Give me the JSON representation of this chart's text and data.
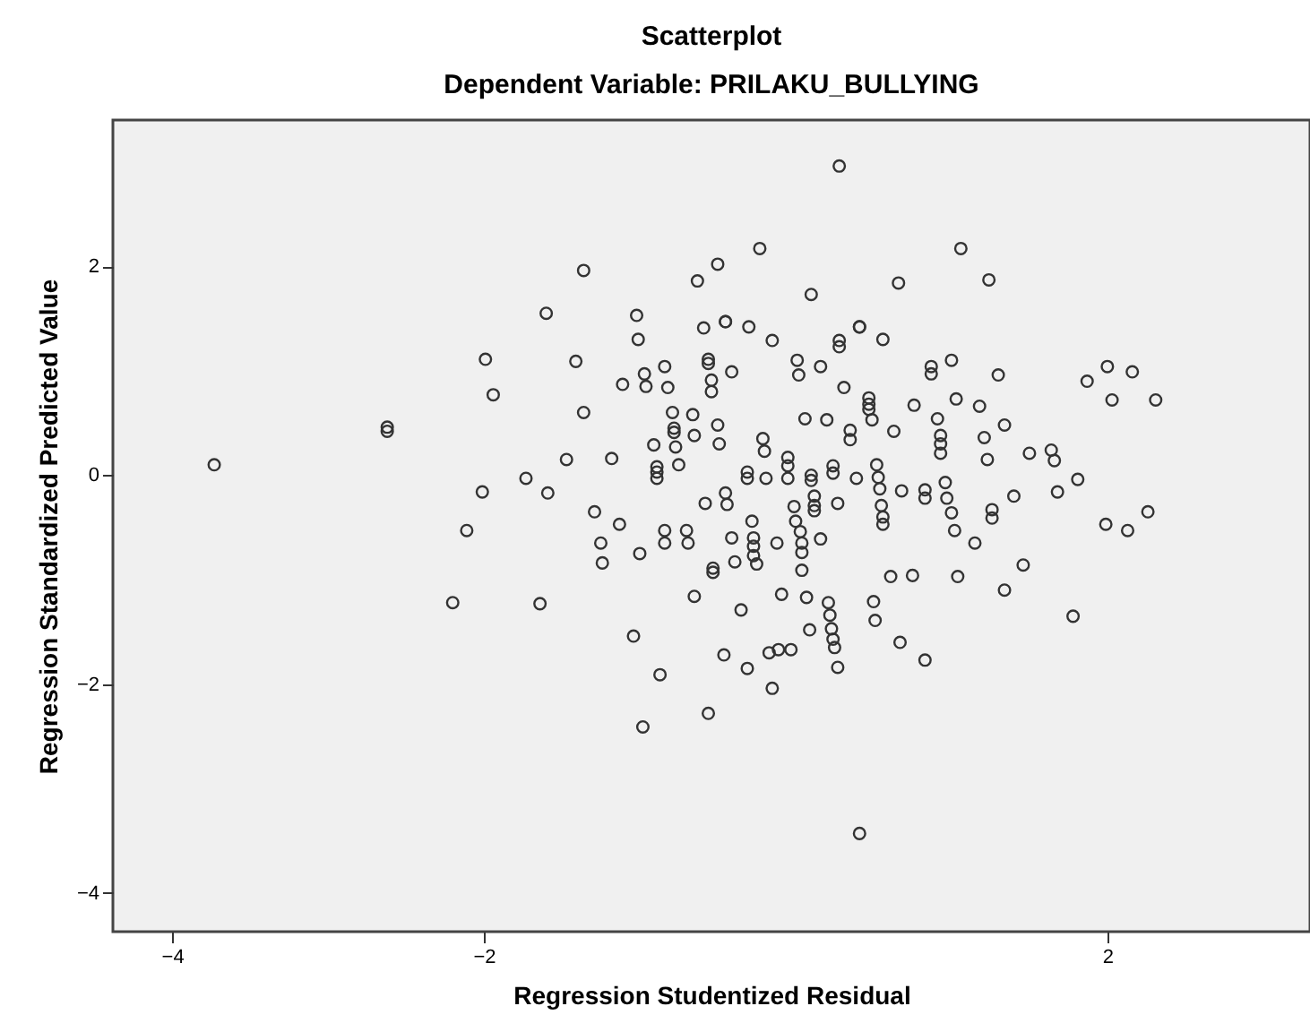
{
  "chart_data": {
    "type": "scatter",
    "title": "Scatterplot",
    "subtitle": "Dependent Variable: PRILAKU_BULLYING",
    "xlabel": "Regression Studentized Residual",
    "ylabel": "Regression Standardized Predicted Value",
    "marker": "circle",
    "color": "#333333",
    "x": [
      -3.73,
      -2.62,
      -2.62,
      -1.99,
      -1.94,
      -1.73,
      -2.01,
      -2.11,
      -2.2,
      -1.64,
      -0.23,
      -1.36,
      -0.5,
      -0.63,
      -1.6,
      -1.02,
      -1.01,
      -0.59,
      -0.45,
      -0.45,
      -0.3,
      -0.15,
      -1.41,
      -0.56,
      -0.56,
      -0.41,
      -0.97,
      -0.84,
      -1.11,
      -0.96,
      -0.82,
      -0.54,
      -0.54,
      -1.36,
      -0.79,
      -0.66,
      -0.78,
      -0.78,
      -0.5,
      -0.65,
      -0.91,
      -0.77,
      -0.49,
      -0.21,
      -0.2,
      -1.47,
      -1.18,
      -0.75,
      -0.89,
      -0.89,
      -0.89,
      -1.59,
      -0.31,
      -0.31,
      -0.19,
      -0.45,
      -0.58,
      -0.44,
      -1.29,
      -1.13,
      -0.28,
      -0.84,
      -0.7,
      -0.84,
      -0.69,
      -0.41,
      -0.27,
      -0.27,
      -0.27,
      -0.12,
      -1.25,
      -1.24,
      -1.0,
      -0.39,
      -0.25,
      -0.53,
      -0.53,
      -0.65,
      -0.09,
      -0.35,
      -1.04,
      -0.46,
      -0.17,
      -0.11,
      -0.31,
      -0.87,
      -0.15,
      -0.56,
      -0.98,
      0.28,
      1.06,
      1.24,
      0.66,
      0.1,
      0.28,
      0.28,
      0.41,
      0.41,
      0.56,
      0.01,
      0.02,
      0.16,
      0.87,
      0.87,
      1.0,
      1.3,
      0.31,
      0.47,
      0.47,
      0.47,
      0.49,
      0.76,
      1.03,
      1.18,
      0.91,
      1.34,
      0.06,
      0.2,
      0.35,
      0.35,
      0.63,
      0.93,
      0.93,
      0.93,
      1.21,
      1.23,
      1.5,
      -0.05,
      -0.05,
      -0.05,
      0.1,
      0.1,
      0.24,
      0.24,
      0.39,
      0.52,
      0.53,
      0.54,
      0.55,
      0.56,
      0.56,
      0.68,
      0.83,
      0.83,
      0.96,
      0.97,
      1.0,
      1.02,
      0.12,
      0.12,
      0.12,
      0.27,
      -0.01,
      0.0,
      0.03,
      0.04,
      0.04,
      0.04,
      0.16,
      1.26,
      1.26,
      1.4,
      1.15,
      1.46,
      1.34,
      0.61,
      0.75,
      1.04,
      0.07,
      0.21,
      0.22,
      0.23,
      0.24,
      0.25,
      0.27,
      0.09,
      -0.03,
      0.5,
      0.51,
      0.67,
      0.83,
      0.41,
      1.87,
      2.0,
      2.16,
      2.03,
      2.31,
      1.64,
      1.66,
      1.81,
      1.68,
      1.99,
      2.13,
      2.26,
      1.78
    ],
    "values": [
      0.1,
      0.46,
      0.42,
      1.11,
      0.77,
      -0.03,
      -0.16,
      -0.53,
      -1.22,
      -1.23,
      2.17,
      1.96,
      2.02,
      1.86,
      1.55,
      1.53,
      1.3,
      1.41,
      1.47,
      1.47,
      1.42,
      1.29,
      1.09,
      1.11,
      1.07,
      0.99,
      0.97,
      1.04,
      0.87,
      0.85,
      0.84,
      0.91,
      0.8,
      0.6,
      0.6,
      0.58,
      0.41,
      0.45,
      0.48,
      0.38,
      0.29,
      0.27,
      0.3,
      0.35,
      0.23,
      0.15,
      0.16,
      0.1,
      0.08,
      0.03,
      -0.03,
      -0.17,
      -0.03,
      0.03,
      -0.03,
      -0.17,
      -0.27,
      -0.28,
      -0.35,
      -0.47,
      -0.44,
      -0.53,
      -0.53,
      -0.65,
      -0.65,
      -0.6,
      -0.6,
      -0.68,
      -0.77,
      -0.65,
      -0.65,
      -0.84,
      -0.75,
      -0.83,
      -0.85,
      -0.89,
      -0.93,
      -1.16,
      -1.14,
      -1.29,
      -1.54,
      -1.72,
      -1.7,
      -1.67,
      -1.85,
      -1.91,
      -2.04,
      -2.28,
      -2.41,
      2.96,
      2.17,
      1.87,
      1.84,
      1.73,
      1.29,
      1.23,
      1.42,
      1.42,
      1.3,
      1.1,
      0.96,
      1.04,
      1.04,
      0.97,
      1.1,
      0.96,
      0.84,
      0.74,
      0.68,
      0.63,
      0.53,
      0.67,
      0.73,
      0.66,
      0.54,
      0.48,
      0.54,
      0.53,
      0.43,
      0.34,
      0.42,
      0.38,
      0.3,
      0.21,
      0.36,
      0.15,
      0.21,
      0.17,
      0.09,
      -0.03,
      0.0,
      -0.05,
      0.09,
      0.02,
      -0.03,
      0.1,
      -0.02,
      -0.13,
      -0.29,
      -0.4,
      -0.47,
      -0.15,
      -0.14,
      -0.22,
      -0.07,
      -0.22,
      -0.36,
      -0.53,
      -0.2,
      -0.29,
      -0.34,
      -0.27,
      -0.3,
      -0.44,
      -0.54,
      -0.65,
      -0.74,
      -0.91,
      -0.61,
      -0.33,
      -0.41,
      -0.2,
      -0.65,
      -0.86,
      -1.1,
      -0.97,
      -0.96,
      -0.97,
      -1.17,
      -1.22,
      -1.34,
      -1.47,
      -1.57,
      -1.65,
      -1.84,
      -1.48,
      -1.67,
      -1.21,
      -1.39,
      -1.6,
      -1.77,
      -3.43,
      0.9,
      1.04,
      0.99,
      0.72,
      0.72,
      0.24,
      0.14,
      -0.04,
      -0.16,
      -0.47,
      -0.53,
      -0.35,
      -1.35
    ],
    "xlim": [
      -4.38,
      3.3
    ],
    "ylim": [
      -4.37,
      3.4
    ],
    "xticks": [
      -4,
      -2,
      2
    ],
    "yticks": [
      -4,
      -2,
      0,
      2
    ]
  }
}
